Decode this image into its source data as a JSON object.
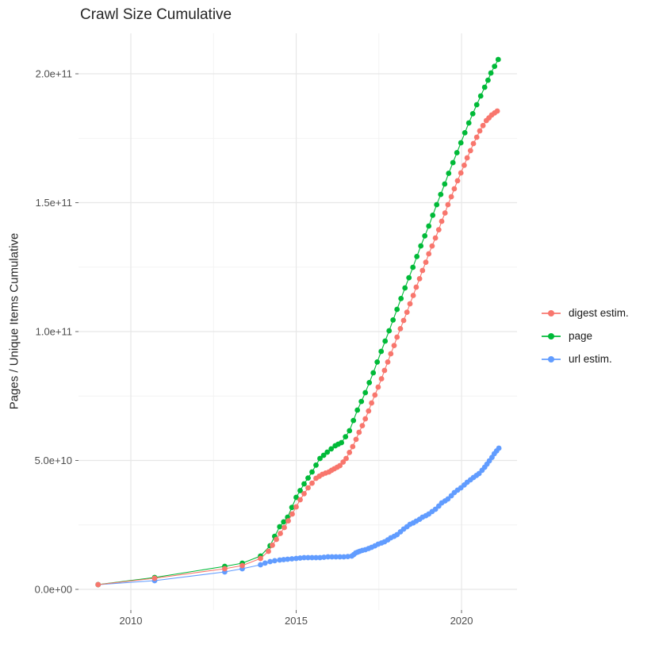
{
  "title": "Crawl Size Cumulative",
  "axes": {
    "y_title": "Pages / Unique Items Cumulative",
    "x_tick_labels": [
      "2010",
      "2015",
      "2020"
    ],
    "y_tick_labels": [
      "0.0e+00",
      "5.0e+10",
      "1.0e+11",
      "1.5e+11",
      "2.0e+11"
    ]
  },
  "legend": {
    "items": [
      {
        "label": "digest estim.",
        "color": "#F8766D"
      },
      {
        "label": "page",
        "color": "#00BA38"
      },
      {
        "label": "url estim.",
        "color": "#619CFF"
      }
    ]
  },
  "chart_data": {
    "type": "line",
    "title": "Crawl Size Cumulative",
    "xlabel": "",
    "ylabel": "Pages / Unique Items Cumulative",
    "values_unit": "billions of pages (1e9)",
    "xlim": [
      2008.417,
      2021.678
    ],
    "ylim_billions": [
      -8,
      215.7
    ],
    "x_breaks": [
      2010,
      2015,
      2020
    ],
    "x_minor_breaks": [
      2012.5,
      2017.5
    ],
    "y_breaks_billions": [
      0,
      50,
      100,
      150,
      200
    ],
    "y_minor_breaks_billions": [
      25,
      75,
      125,
      175
    ],
    "grid": true,
    "legend_position": "right",
    "draw_order": [
      2,
      1,
      0
    ],
    "series": [
      {
        "name": "digest estim.",
        "color": "#F8766D",
        "points": [
          [
            2009.01,
            1.85
          ],
          [
            2010.72,
            4.31
          ],
          [
            2012.84,
            8.0
          ],
          [
            2013.37,
            9.23
          ],
          [
            2013.92,
            12.0
          ],
          [
            2014.16,
            14.77
          ],
          [
            2014.28,
            17.1
          ],
          [
            2014.4,
            19.38
          ],
          [
            2014.52,
            21.7
          ],
          [
            2014.64,
            24.0
          ],
          [
            2014.76,
            26.6
          ],
          [
            2014.88,
            29.23
          ],
          [
            2015.0,
            32.0
          ],
          [
            2015.12,
            34.77
          ],
          [
            2015.24,
            37.1
          ],
          [
            2015.36,
            39.38
          ],
          [
            2015.48,
            41.2
          ],
          [
            2015.6,
            43.08
          ],
          [
            2015.7,
            43.9
          ],
          [
            2015.79,
            44.62
          ],
          [
            2015.89,
            45.1
          ],
          [
            2015.99,
            45.54
          ],
          [
            2016.07,
            46.2
          ],
          [
            2016.15,
            46.77
          ],
          [
            2016.24,
            47.4
          ],
          [
            2016.32,
            48.0
          ],
          [
            2016.42,
            49.4
          ],
          [
            2016.51,
            50.77
          ],
          [
            2016.61,
            53.1
          ],
          [
            2016.71,
            55.38
          ],
          [
            2016.81,
            58.2
          ],
          [
            2016.9,
            60.92
          ],
          [
            2017.0,
            63.5
          ],
          [
            2017.09,
            66.15
          ],
          [
            2017.19,
            69.2
          ],
          [
            2017.28,
            72.31
          ],
          [
            2017.38,
            75.4
          ],
          [
            2017.48,
            78.46
          ],
          [
            2017.58,
            81.7
          ],
          [
            2017.67,
            84.92
          ],
          [
            2017.77,
            88.2
          ],
          [
            2017.86,
            91.38
          ],
          [
            2017.96,
            94.6
          ],
          [
            2018.05,
            97.85
          ],
          [
            2018.15,
            101.1
          ],
          [
            2018.25,
            104.31
          ],
          [
            2018.35,
            107.5
          ],
          [
            2018.44,
            110.77
          ],
          [
            2018.54,
            114.0
          ],
          [
            2018.63,
            117.23
          ],
          [
            2018.73,
            120.5
          ],
          [
            2018.82,
            123.69
          ],
          [
            2018.92,
            126.9
          ],
          [
            2019.01,
            130.15
          ],
          [
            2019.11,
            133.2
          ],
          [
            2019.21,
            136.31
          ],
          [
            2019.31,
            139.5
          ],
          [
            2019.4,
            142.77
          ],
          [
            2019.5,
            146.0
          ],
          [
            2019.59,
            149.23
          ],
          [
            2019.69,
            152.3
          ],
          [
            2019.78,
            155.38
          ],
          [
            2019.88,
            158.5
          ],
          [
            2019.98,
            161.54
          ],
          [
            2020.08,
            164.5
          ],
          [
            2020.17,
            167.38
          ],
          [
            2020.27,
            170.2
          ],
          [
            2020.36,
            172.92
          ],
          [
            2020.46,
            175.4
          ],
          [
            2020.55,
            177.85
          ],
          [
            2020.65,
            179.9
          ],
          [
            2020.75,
            181.85
          ],
          [
            2020.83,
            182.9
          ],
          [
            2020.91,
            184.0
          ],
          [
            2021.0,
            184.8
          ],
          [
            2021.08,
            185.54
          ]
        ]
      },
      {
        "name": "page",
        "color": "#00BA38",
        "points": [
          [
            2009.01,
            1.85
          ],
          [
            2010.72,
            4.62
          ],
          [
            2012.84,
            8.92
          ],
          [
            2013.37,
            10.15
          ],
          [
            2013.92,
            12.92
          ],
          [
            2014.21,
            16.92
          ],
          [
            2014.35,
            20.6
          ],
          [
            2014.5,
            24.31
          ],
          [
            2014.62,
            26.2
          ],
          [
            2014.74,
            28.0
          ],
          [
            2014.87,
            31.8
          ],
          [
            2015.0,
            35.69
          ],
          [
            2015.12,
            38.3
          ],
          [
            2015.24,
            40.92
          ],
          [
            2015.36,
            43.2
          ],
          [
            2015.48,
            45.54
          ],
          [
            2015.6,
            48.2
          ],
          [
            2015.72,
            50.77
          ],
          [
            2015.83,
            52.0
          ],
          [
            2015.94,
            53.23
          ],
          [
            2016.06,
            54.5
          ],
          [
            2016.18,
            55.69
          ],
          [
            2016.27,
            56.3
          ],
          [
            2016.37,
            56.92
          ],
          [
            2016.49,
            59.2
          ],
          [
            2016.61,
            61.54
          ],
          [
            2016.73,
            65.5
          ],
          [
            2016.85,
            69.54
          ],
          [
            2016.97,
            72.9
          ],
          [
            2017.09,
            76.31
          ],
          [
            2017.21,
            80.2
          ],
          [
            2017.33,
            84.0
          ],
          [
            2017.45,
            88.2
          ],
          [
            2017.57,
            92.31
          ],
          [
            2017.69,
            96.3
          ],
          [
            2017.81,
            100.31
          ],
          [
            2017.93,
            104.5
          ],
          [
            2018.05,
            108.61
          ],
          [
            2018.17,
            112.8
          ],
          [
            2018.29,
            116.92
          ],
          [
            2018.41,
            120.9
          ],
          [
            2018.53,
            124.92
          ],
          [
            2018.65,
            129.1
          ],
          [
            2018.77,
            133.23
          ],
          [
            2018.89,
            137.1
          ],
          [
            2019.01,
            140.92
          ],
          [
            2019.13,
            145.1
          ],
          [
            2019.25,
            149.23
          ],
          [
            2019.37,
            153.2
          ],
          [
            2019.49,
            157.23
          ],
          [
            2019.61,
            161.4
          ],
          [
            2019.74,
            165.54
          ],
          [
            2019.86,
            169.4
          ],
          [
            2019.98,
            173.23
          ],
          [
            2020.1,
            177.1
          ],
          [
            2020.22,
            180.92
          ],
          [
            2020.34,
            184.5
          ],
          [
            2020.46,
            188.0
          ],
          [
            2020.58,
            191.4
          ],
          [
            2020.7,
            194.77
          ],
          [
            2020.8,
            197.5
          ],
          [
            2020.89,
            200.31
          ],
          [
            2021.0,
            202.9
          ],
          [
            2021.11,
            205.54
          ]
        ]
      },
      {
        "name": "url estim.",
        "color": "#619CFF",
        "points": [
          [
            2009.01,
            1.85
          ],
          [
            2010.72,
            3.38
          ],
          [
            2012.84,
            6.77
          ],
          [
            2013.37,
            8.0
          ],
          [
            2013.92,
            9.54
          ],
          [
            2014.06,
            10.2
          ],
          [
            2014.21,
            10.77
          ],
          [
            2014.35,
            11.1
          ],
          [
            2014.5,
            11.38
          ],
          [
            2014.62,
            11.55
          ],
          [
            2014.74,
            11.69
          ],
          [
            2014.87,
            11.85
          ],
          [
            2015.0,
            12.0
          ],
          [
            2015.12,
            12.15
          ],
          [
            2015.24,
            12.31
          ],
          [
            2015.36,
            12.31
          ],
          [
            2015.48,
            12.31
          ],
          [
            2015.6,
            12.31
          ],
          [
            2015.72,
            12.31
          ],
          [
            2015.84,
            12.45
          ],
          [
            2015.96,
            12.62
          ],
          [
            2016.08,
            12.62
          ],
          [
            2016.2,
            12.62
          ],
          [
            2016.32,
            12.62
          ],
          [
            2016.44,
            12.62
          ],
          [
            2016.56,
            12.75
          ],
          [
            2016.68,
            12.92
          ],
          [
            2016.74,
            13.5
          ],
          [
            2016.8,
            14.15
          ],
          [
            2016.86,
            14.45
          ],
          [
            2016.92,
            14.77
          ],
          [
            2017.0,
            15.1
          ],
          [
            2017.09,
            15.38
          ],
          [
            2017.19,
            15.85
          ],
          [
            2017.28,
            16.31
          ],
          [
            2017.38,
            16.9
          ],
          [
            2017.48,
            17.54
          ],
          [
            2017.58,
            18.0
          ],
          [
            2017.67,
            18.46
          ],
          [
            2017.77,
            19.2
          ],
          [
            2017.86,
            20.0
          ],
          [
            2017.96,
            20.6
          ],
          [
            2018.05,
            21.23
          ],
          [
            2018.15,
            22.3
          ],
          [
            2018.25,
            23.38
          ],
          [
            2018.35,
            24.3
          ],
          [
            2018.44,
            25.23
          ],
          [
            2018.54,
            25.8
          ],
          [
            2018.63,
            26.46
          ],
          [
            2018.73,
            27.2
          ],
          [
            2018.82,
            28.0
          ],
          [
            2018.92,
            28.6
          ],
          [
            2019.01,
            29.23
          ],
          [
            2019.11,
            30.2
          ],
          [
            2019.21,
            31.08
          ],
          [
            2019.31,
            32.3
          ],
          [
            2019.4,
            33.54
          ],
          [
            2019.5,
            34.3
          ],
          [
            2019.59,
            35.08
          ],
          [
            2019.69,
            36.3
          ],
          [
            2019.78,
            37.54
          ],
          [
            2019.88,
            38.5
          ],
          [
            2019.98,
            39.38
          ],
          [
            2020.08,
            40.5
          ],
          [
            2020.17,
            41.54
          ],
          [
            2020.27,
            42.5
          ],
          [
            2020.36,
            43.38
          ],
          [
            2020.45,
            44.2
          ],
          [
            2020.53,
            44.92
          ],
          [
            2020.62,
            46.2
          ],
          [
            2020.7,
            47.38
          ],
          [
            2020.77,
            48.6
          ],
          [
            2020.84,
            49.85
          ],
          [
            2020.92,
            51.2
          ],
          [
            2020.99,
            52.62
          ],
          [
            2021.06,
            53.7
          ],
          [
            2021.13,
            54.77
          ]
        ]
      }
    ]
  }
}
